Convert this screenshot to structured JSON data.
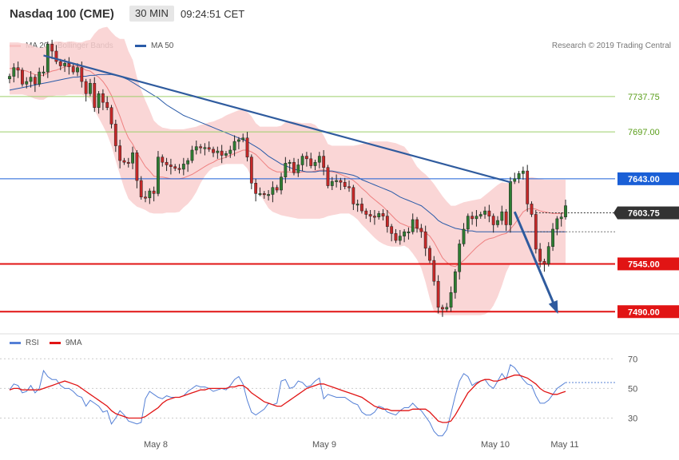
{
  "header": {
    "title": "Nasdaq 100 (CME)",
    "timeframe": "30 MIN",
    "time": "09:24:51 CET",
    "credit": "Research © 2019 Trading Central"
  },
  "legend": {
    "ma20_label": "MA 20 + Bollinger Bands",
    "ma50_label": "MA 50",
    "rsi_label": "RSI",
    "ma9_label": "9MA"
  },
  "colors": {
    "bull": "#2e7d32",
    "bear": "#c62828",
    "band_fill": "#f9cfcf",
    "ma20": "#ee8080",
    "ma50": "#2a5ba8",
    "trendline": "#2f5b9e",
    "resistance": "#1a5fd6",
    "support": "#e11414",
    "green_level": "#9ccf6a",
    "rsi": "#5580d6",
    "rsi_ma": "#e11414",
    "current": "#333333"
  },
  "chart_data": [
    {
      "type": "candlestick",
      "title": "Nasdaq 100 (CME)",
      "x_labels": [
        "May 8",
        "May 9",
        "May 10",
        "May 11"
      ],
      "ylim": [
        7470,
        7790
      ],
      "levels": [
        {
          "value": 7737.75,
          "label": "7737.75",
          "kind": "green"
        },
        {
          "value": 7697.0,
          "label": "7697.00",
          "kind": "green"
        },
        {
          "value": 7643.0,
          "label": "7643.00",
          "kind": "resistance"
        },
        {
          "value": 7603.75,
          "label": "7603.75",
          "kind": "current"
        },
        {
          "value": 7545.0,
          "label": "7545.00",
          "kind": "support"
        },
        {
          "value": 7490.0,
          "label": "7490.00",
          "kind": "support"
        }
      ],
      "trendline": {
        "start": [
          8,
          7785
        ],
        "end": [
          118,
          7639
        ]
      },
      "projection": {
        "start": [
          119,
          7605
        ],
        "end": [
          129,
          7490
        ]
      },
      "closes": [
        7761,
        7771,
        7768,
        7752,
        7755,
        7760,
        7752,
        7766,
        7766,
        7798,
        7790,
        7778,
        7773,
        7776,
        7772,
        7766,
        7771,
        7755,
        7741,
        7753,
        7725,
        7741,
        7731,
        7725,
        7706,
        7681,
        7664,
        7662,
        7661,
        7673,
        7641,
        7622,
        7621,
        7629,
        7626,
        7668,
        7662,
        7659,
        7657,
        7655,
        7654,
        7660,
        7664,
        7676,
        7680,
        7679,
        7679,
        7677,
        7673,
        7675,
        7670,
        7672,
        7676,
        7686,
        7688,
        7690,
        7668,
        7638,
        7626,
        7626,
        7625,
        7625,
        7633,
        7630,
        7645,
        7661,
        7662,
        7650,
        7659,
        7669,
        7666,
        7658,
        7662,
        7669,
        7656,
        7635,
        7640,
        7641,
        7639,
        7634,
        7633,
        7614,
        7614,
        7606,
        7602,
        7600,
        7599,
        7603,
        7600,
        7588,
        7580,
        7572,
        7577,
        7582,
        7582,
        7596,
        7586,
        7582,
        7563,
        7549,
        7525,
        7495,
        7493,
        7495,
        7512,
        7536,
        7568,
        7585,
        7600,
        7597,
        7600,
        7602,
        7606,
        7600,
        7590,
        7595,
        7605,
        7590,
        7640,
        7643,
        7649,
        7652,
        7614,
        7602,
        7562,
        7548,
        7545,
        7565,
        7585,
        7597,
        7599,
        7612
      ],
      "bb_mid": [
        7770,
        7770,
        7769,
        7768,
        7767,
        7765,
        7763,
        7762,
        7762,
        7765,
        7767,
        7768,
        7770,
        7772,
        7773,
        7773,
        7773,
        7771,
        7768,
        7767,
        7763,
        7760,
        7755,
        7748,
        7739,
        7727,
        7715,
        7701,
        7690,
        7683,
        7673,
        7665,
        7657,
        7652,
        7646,
        7645,
        7645,
        7644,
        7643,
        7643,
        7643,
        7644,
        7646,
        7648,
        7651,
        7654,
        7657,
        7660,
        7662,
        7665,
        7666,
        7668,
        7670,
        7672,
        7674,
        7676,
        7676,
        7674,
        7671,
        7666,
        7661,
        7656,
        7653,
        7651,
        7651,
        7651,
        7651,
        7650,
        7650,
        7651,
        7651,
        7651,
        7652,
        7653,
        7653,
        7652,
        7651,
        7650,
        7648,
        7646,
        7644,
        7641,
        7637,
        7632,
        7628,
        7623,
        7619,
        7615,
        7611,
        7606,
        7601,
        7596,
        7592,
        7590,
        7588,
        7587,
        7586,
        7584,
        7581,
        7577,
        7570,
        7561,
        7552,
        7547,
        7543,
        7542,
        7545,
        7549,
        7554,
        7559,
        7564,
        7568,
        7572,
        7574,
        7575,
        7577,
        7579,
        7580,
        7585,
        7591,
        7598,
        7605,
        7608,
        7609,
        7608,
        7606,
        7605,
        7604,
        7603,
        7603,
        7603,
        7604
      ],
      "bb_upper": [
        7800,
        7800,
        7800,
        7799,
        7799,
        7797,
        7795,
        7794,
        7794,
        7798,
        7800,
        7801,
        7801,
        7800,
        7801,
        7801,
        7800,
        7800,
        7802,
        7803,
        7810,
        7815,
        7817,
        7818,
        7812,
        7807,
        7804,
        7804,
        7790,
        7780,
        7760,
        7745,
        7733,
        7722,
        7710,
        7705,
        7702,
        7701,
        7700,
        7700,
        7700,
        7700,
        7701,
        7702,
        7703,
        7705,
        7706,
        7708,
        7709,
        7711,
        7713,
        7716,
        7718,
        7720,
        7722,
        7722,
        7720,
        7715,
        7707,
        7703,
        7703,
        7703,
        7703,
        7703,
        7704,
        7708,
        7709,
        7709,
        7708,
        7707,
        7707,
        7707,
        7705,
        7700,
        7693,
        7683,
        7681,
        7681,
        7681,
        7681,
        7681,
        7681,
        7682,
        7683,
        7684,
        7686,
        7686,
        7686,
        7686,
        7686,
        7685,
        7684,
        7682,
        7680,
        7674,
        7665,
        7657,
        7652,
        7648,
        7643,
        7637,
        7630,
        7623,
        7617,
        7612,
        7612,
        7614,
        7616,
        7617,
        7618,
        7619,
        7620,
        7624,
        7628,
        7632,
        7636,
        7639,
        7638,
        7639,
        7640,
        7641,
        7642,
        7644,
        7645,
        7644,
        7643,
        7642,
        7642,
        7642,
        7642,
        7642,
        7642
      ],
      "bb_lower": [
        7740,
        7740,
        7740,
        7740,
        7739,
        7737,
        7735,
        7734,
        7734,
        7737,
        7738,
        7739,
        7739,
        7739,
        7740,
        7740,
        7740,
        7740,
        7738,
        7735,
        7722,
        7713,
        7704,
        7694,
        7681,
        7664,
        7648,
        7632,
        7620,
        7615,
        7611,
        7609,
        7607,
        7604,
        7603,
        7603,
        7603,
        7604,
        7604,
        7604,
        7605,
        7610,
        7614,
        7620,
        7628,
        7638,
        7646,
        7652,
        7656,
        7657,
        7659,
        7660,
        7660,
        7660,
        7660,
        7660,
        7655,
        7645,
        7636,
        7625,
        7617,
        7609,
        7605,
        7603,
        7601,
        7600,
        7599,
        7598,
        7597,
        7597,
        7597,
        7597,
        7597,
        7597,
        7598,
        7600,
        7601,
        7602,
        7603,
        7603,
        7603,
        7600,
        7596,
        7590,
        7585,
        7580,
        7575,
        7571,
        7568,
        7566,
        7565,
        7565,
        7565,
        7566,
        7563,
        7557,
        7550,
        7540,
        7524,
        7505,
        7490,
        7487,
        7486,
        7486,
        7486,
        7486,
        7486,
        7486,
        7486,
        7486,
        7486,
        7486,
        7487,
        7490,
        7497,
        7507,
        7520,
        7535,
        7545,
        7545,
        7545,
        7545,
        7545,
        7545,
        7545,
        7545,
        7545,
        7545,
        7545,
        7545,
        7545,
        7545
      ],
      "ma50": [
        7745,
        7746,
        7747,
        7748,
        7749,
        7750,
        7751,
        7752,
        7753,
        7754,
        7755,
        7756,
        7757,
        7758,
        7759,
        7760,
        7760,
        7761,
        7761,
        7762,
        7762,
        7763,
        7763,
        7763,
        7763,
        7762,
        7761,
        7759,
        7757,
        7754,
        7751,
        7748,
        7745,
        7742,
        7739,
        7736,
        7732,
        7728,
        7725,
        7722,
        7719,
        7716,
        7714,
        7712,
        7710,
        7708,
        7706,
        7704,
        7702,
        7700,
        7698,
        7696,
        7694,
        7692,
        7690,
        7688,
        7686,
        7683,
        7680,
        7677,
        7673,
        7669,
        7666,
        7663,
        7660,
        7658,
        7656,
        7654,
        7653,
        7652,
        7651,
        7651,
        7651,
        7652,
        7652,
        7652,
        7652,
        7651,
        7650,
        7649,
        7648,
        7647,
        7645,
        7642,
        7640,
        7638,
        7636,
        7634,
        7632,
        7630,
        7628,
        7625,
        7622,
        7620,
        7618,
        7616,
        7614,
        7612,
        7608,
        7604,
        7600,
        7595,
        7592,
        7590,
        7588,
        7586,
        7585,
        7584,
        7583,
        7583,
        7582,
        7582,
        7582,
        7582,
        7582,
        7582,
        7582,
        7582,
        7582,
        7582,
        7582,
        7582,
        7582,
        7582,
        7582,
        7582,
        7582,
        7582,
        7582,
        7582,
        7582,
        7582
      ]
    },
    {
      "type": "line",
      "title": "RSI",
      "ylim": [
        20,
        75
      ],
      "yticks": [
        30,
        50,
        70
      ],
      "series": [
        {
          "name": "RSI",
          "values": [
            49,
            53,
            52,
            47,
            48,
            52,
            47,
            50,
            62,
            58,
            56,
            56,
            52,
            50,
            50,
            48,
            45,
            44,
            38,
            42,
            40,
            38,
            34,
            35,
            26,
            30,
            35,
            32,
            28,
            27,
            26,
            27,
            43,
            48,
            46,
            44,
            43,
            45,
            44,
            44,
            44,
            45,
            48,
            50,
            52,
            51,
            51,
            50,
            48,
            49,
            50,
            49,
            52,
            56,
            58,
            53,
            42,
            34,
            32,
            34,
            36,
            40,
            39,
            40,
            55,
            56,
            50,
            51,
            55,
            54,
            51,
            52,
            55,
            57,
            43,
            46,
            45,
            44,
            44,
            44,
            42,
            40,
            39,
            34,
            32,
            32,
            34,
            38,
            37,
            34,
            33,
            32,
            35,
            37,
            37,
            40,
            37,
            35,
            31,
            27,
            21,
            18,
            18,
            22,
            33,
            45,
            55,
            60,
            58,
            52,
            54,
            55,
            56,
            52,
            50,
            55,
            60,
            56,
            66,
            64,
            60,
            56,
            53,
            52,
            45,
            40,
            40,
            42,
            46,
            50,
            52,
            54
          ]
        },
        {
          "name": "9MA",
          "values": [
            49,
            50,
            50,
            49,
            49,
            49,
            49,
            49,
            50,
            51,
            52,
            53,
            54,
            55,
            54,
            53,
            52,
            50,
            48,
            46,
            44,
            42,
            40,
            38,
            35,
            33,
            32,
            31,
            30,
            30,
            30,
            30,
            31,
            33,
            35,
            37,
            40,
            42,
            43,
            44,
            44,
            45,
            46,
            47,
            48,
            49,
            49,
            50,
            50,
            50,
            50,
            50,
            51,
            51,
            52,
            52,
            50,
            47,
            45,
            43,
            41,
            40,
            39,
            38,
            38,
            40,
            42,
            44,
            46,
            48,
            50,
            51,
            52,
            53,
            53,
            52,
            51,
            50,
            49,
            48,
            47,
            46,
            45,
            44,
            42,
            40,
            38,
            37,
            36,
            36,
            35,
            35,
            35,
            35,
            35,
            36,
            36,
            36,
            36,
            34,
            31,
            28,
            27,
            27,
            28,
            32,
            37,
            42,
            47,
            50,
            53,
            55,
            56,
            56,
            55,
            55,
            56,
            57,
            58,
            59,
            59,
            58,
            57,
            55,
            53,
            50,
            48,
            47,
            46,
            46,
            47,
            48
          ]
        }
      ]
    }
  ]
}
